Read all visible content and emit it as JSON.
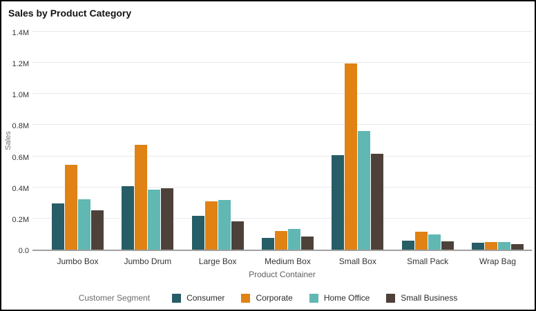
{
  "title": "Sales by Product Category",
  "x_axis_title": "Product Container",
  "y_axis_title": "Sales",
  "legend_title": "Customer Segment",
  "colors": {
    "consumer": "#265d66",
    "corporate": "#e08214",
    "home_office": "#61b7b2",
    "small_business": "#4d4139",
    "gridline": "#e9e9ee",
    "baseline": "#a0a0a0"
  },
  "chart_data": {
    "type": "bar",
    "title": "Sales by Product Category",
    "xlabel": "Product Container",
    "ylabel": "Sales",
    "legend_title": "Customer Segment",
    "legend_position": "bottom",
    "grid": true,
    "unit": "M",
    "ylim": [
      0,
      1.4
    ],
    "yticks": [
      {
        "value": 0.0,
        "label": "0.0"
      },
      {
        "value": 0.2,
        "label": "0.2M"
      },
      {
        "value": 0.4,
        "label": "0.4M"
      },
      {
        "value": 0.6,
        "label": "0.6M"
      },
      {
        "value": 0.8,
        "label": "0.8M"
      },
      {
        "value": 1.0,
        "label": "1.0M"
      },
      {
        "value": 1.2,
        "label": "1.2M"
      },
      {
        "value": 1.4,
        "label": "1.4M"
      }
    ],
    "categories": [
      "Jumbo Box",
      "Jumbo Drum",
      "Large Box",
      "Medium Box",
      "Small Box",
      "Small Pack",
      "Wrap Bag"
    ],
    "series": [
      {
        "name": "Consumer",
        "color": "#265d66",
        "values": [
          0.3,
          0.41,
          0.22,
          0.075,
          0.61,
          0.06,
          0.045
        ]
      },
      {
        "name": "Corporate",
        "color": "#e08214",
        "values": [
          0.55,
          0.68,
          0.31,
          0.12,
          1.205,
          0.115,
          0.05
        ]
      },
      {
        "name": "Home Office",
        "color": "#61b7b2",
        "values": [
          0.325,
          0.39,
          0.32,
          0.135,
          0.765,
          0.1,
          0.047
        ]
      },
      {
        "name": "Small Business",
        "color": "#4d4139",
        "values": [
          0.255,
          0.395,
          0.185,
          0.085,
          0.62,
          0.055,
          0.035
        ]
      }
    ]
  }
}
